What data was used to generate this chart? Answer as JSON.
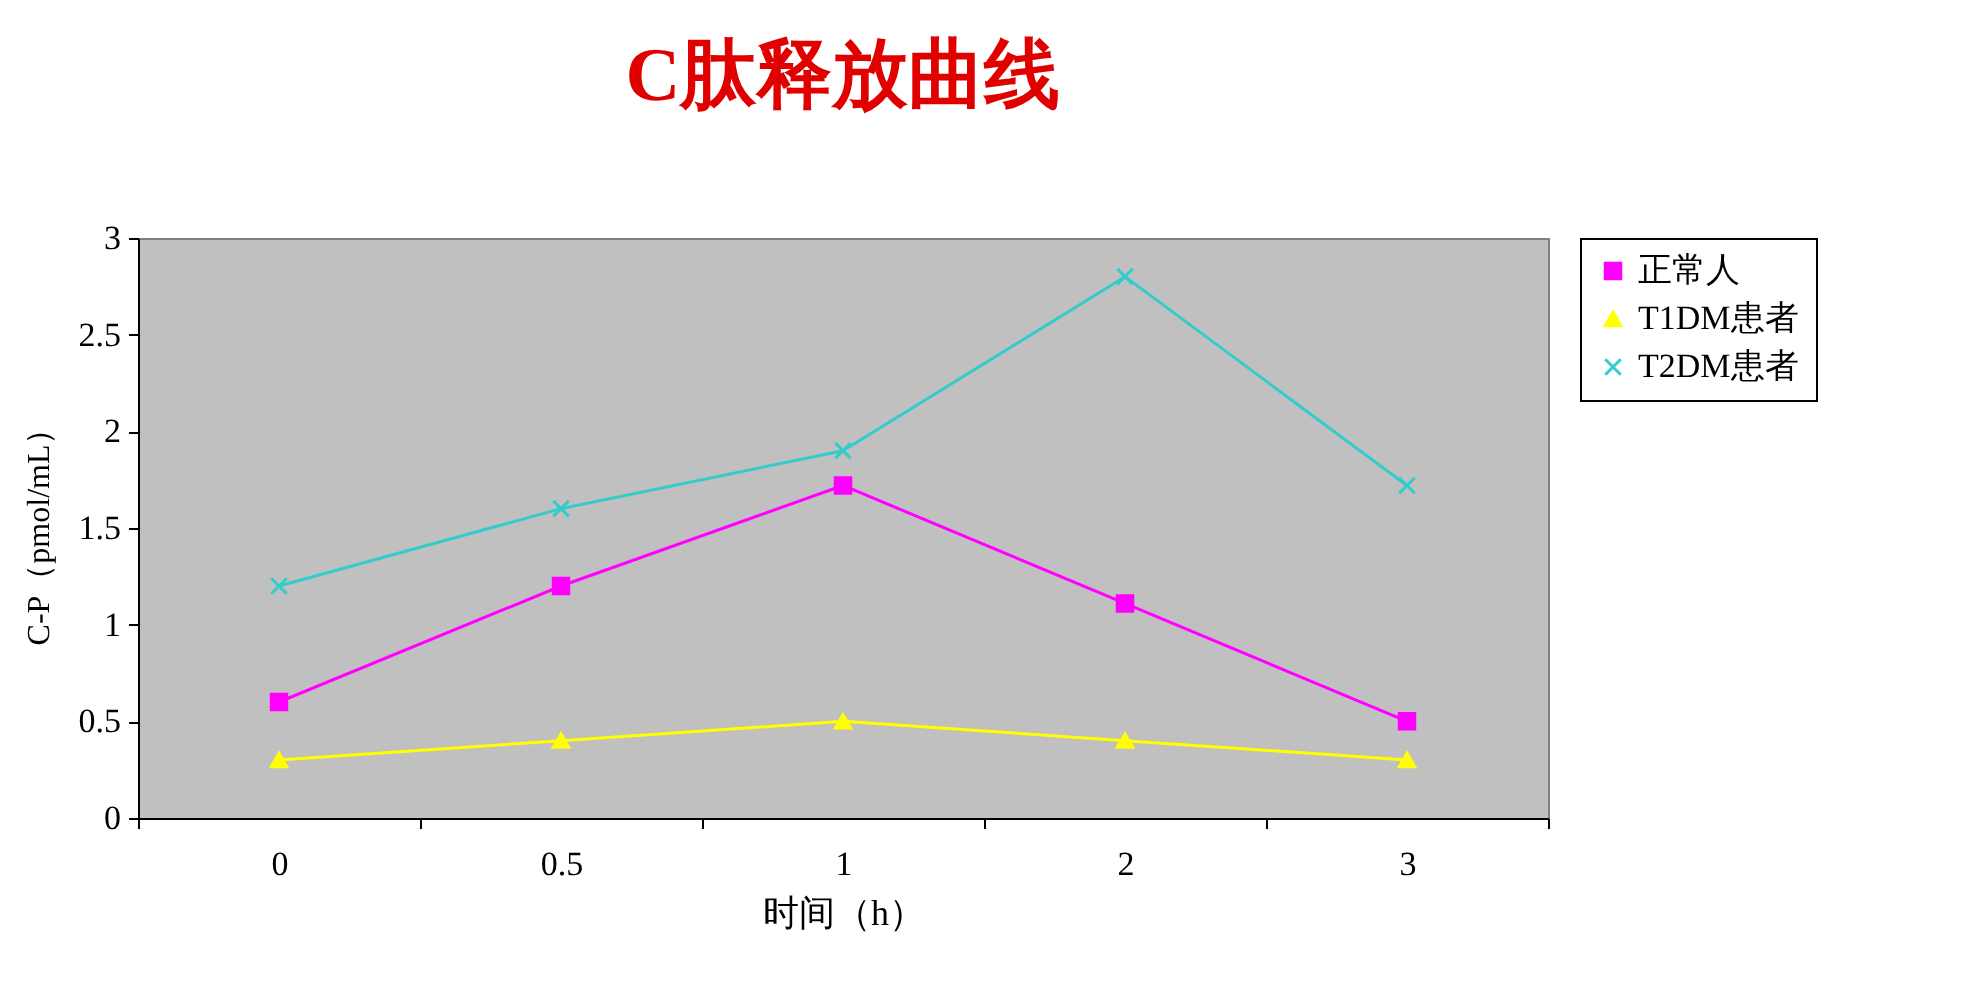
{
  "chart_data": {
    "type": "line",
    "title": "C肽释放曲线",
    "xlabel": "时间（h）",
    "ylabel": "C-P（pmol/mL）",
    "categories": [
      "0",
      "0.5",
      "1",
      "2",
      "3"
    ],
    "series": [
      {
        "name": "正常人",
        "color": "#ff00ff",
        "marker": "square",
        "values": [
          0.6,
          1.2,
          1.72,
          1.11,
          0.5
        ]
      },
      {
        "name": "T1DM患者",
        "color": "#ffff00",
        "marker": "triangle",
        "values": [
          0.3,
          0.4,
          0.5,
          0.4,
          0.3
        ]
      },
      {
        "name": "T2DM患者",
        "color": "#33cccc",
        "marker": "cross",
        "values": [
          1.2,
          1.6,
          1.9,
          2.8,
          1.72
        ]
      }
    ],
    "ylim": [
      0,
      3
    ],
    "yticks": [
      0,
      0.5,
      1,
      1.5,
      2,
      2.5,
      3
    ],
    "grid": false,
    "legend": "right"
  }
}
